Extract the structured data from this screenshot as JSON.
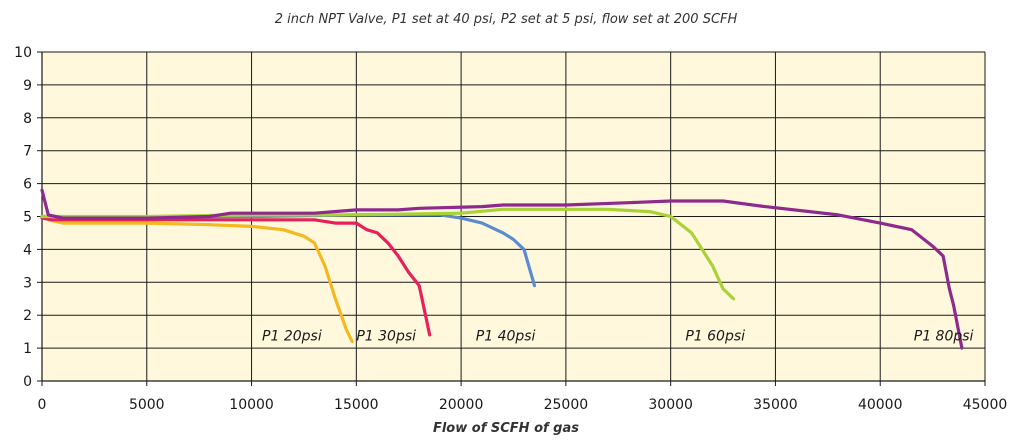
{
  "chart_data": {
    "type": "line",
    "title": "2 inch NPT Valve, P1 set at 40 psi, P2 set at 5 psi, flow set at 200 SCFH",
    "xlabel": "Flow of SCFH of gas",
    "ylabel": "",
    "xlim": [
      0,
      45000
    ],
    "ylim": [
      0,
      10
    ],
    "xticks": [
      "0",
      "5000",
      "10000",
      "15000",
      "20000",
      "25000",
      "30000",
      "35000",
      "40000",
      "45000"
    ],
    "yticks": [
      "0",
      "1",
      "2",
      "3",
      "4",
      "5",
      "6",
      "7",
      "8",
      "9",
      "10"
    ],
    "grid": true,
    "plot_background": "#FFF8DC",
    "series": [
      {
        "name": "P1 20psi",
        "color": "#F5B820",
        "points": [
          [
            0,
            5.0
          ],
          [
            300,
            4.9
          ],
          [
            1000,
            4.8
          ],
          [
            5000,
            4.8
          ],
          [
            8000,
            4.75
          ],
          [
            10000,
            4.7
          ],
          [
            11500,
            4.6
          ],
          [
            12500,
            4.4
          ],
          [
            13000,
            4.2
          ],
          [
            13500,
            3.5
          ],
          [
            14000,
            2.5
          ],
          [
            14500,
            1.6
          ],
          [
            14800,
            1.2
          ]
        ]
      },
      {
        "name": "P1 30psi",
        "color": "#E8205A",
        "points": [
          [
            0,
            4.95
          ],
          [
            500,
            4.9
          ],
          [
            5000,
            4.9
          ],
          [
            10000,
            4.9
          ],
          [
            13000,
            4.9
          ],
          [
            14000,
            4.8
          ],
          [
            15000,
            4.8
          ],
          [
            15500,
            4.6
          ],
          [
            16000,
            4.5
          ],
          [
            16500,
            4.2
          ],
          [
            17000,
            3.8
          ],
          [
            17500,
            3.3
          ],
          [
            18000,
            2.9
          ],
          [
            18500,
            1.4
          ]
        ]
      },
      {
        "name": "P1 40psi",
        "color": "#5B8CD0",
        "points": [
          [
            0,
            5.0
          ],
          [
            300,
            5.0
          ],
          [
            5000,
            4.98
          ],
          [
            10000,
            5.0
          ],
          [
            15000,
            5.05
          ],
          [
            19000,
            5.05
          ],
          [
            20000,
            4.95
          ],
          [
            21000,
            4.8
          ],
          [
            22000,
            4.5
          ],
          [
            22500,
            4.3
          ],
          [
            23000,
            4.0
          ],
          [
            23500,
            2.9
          ]
        ]
      },
      {
        "name": "P1 60psi",
        "color": "#A8D235",
        "points": [
          [
            0,
            5.0
          ],
          [
            5000,
            5.0
          ],
          [
            10000,
            5.05
          ],
          [
            15000,
            5.05
          ],
          [
            20000,
            5.1
          ],
          [
            22000,
            5.22
          ],
          [
            27000,
            5.22
          ],
          [
            29000,
            5.15
          ],
          [
            30000,
            5.0
          ],
          [
            31000,
            4.5
          ],
          [
            32000,
            3.5
          ],
          [
            32500,
            2.8
          ],
          [
            33000,
            2.5
          ]
        ]
      },
      {
        "name": "P1 80psi",
        "color": "#8E2A8E",
        "points": [
          [
            0,
            5.8
          ],
          [
            200,
            5.3
          ],
          [
            300,
            5.05
          ],
          [
            1000,
            4.95
          ],
          [
            5000,
            4.95
          ],
          [
            8000,
            5.0
          ],
          [
            9000,
            5.1
          ],
          [
            13000,
            5.1
          ],
          [
            15000,
            5.2
          ],
          [
            17000,
            5.2
          ],
          [
            18000,
            5.25
          ],
          [
            21000,
            5.3
          ],
          [
            22000,
            5.35
          ],
          [
            25000,
            5.35
          ],
          [
            28000,
            5.42
          ],
          [
            30000,
            5.47
          ],
          [
            32500,
            5.47
          ],
          [
            34500,
            5.3
          ],
          [
            38000,
            5.05
          ],
          [
            40000,
            4.8
          ],
          [
            41500,
            4.6
          ],
          [
            42500,
            4.1
          ],
          [
            43000,
            3.8
          ],
          [
            43300,
            2.8
          ],
          [
            43500,
            2.3
          ],
          [
            43900,
            1.0
          ]
        ]
      }
    ],
    "annotations": [
      {
        "text": "P1 20psi",
        "x": 10500,
        "y": 1.2
      },
      {
        "text": "P1 30psi",
        "x": 15000,
        "y": 1.2
      },
      {
        "text": "P1 40psi",
        "x": 20700,
        "y": 1.2
      },
      {
        "text": "P1 60psi",
        "x": 30700,
        "y": 1.2
      },
      {
        "text": "P1 80psi",
        "x": 41600,
        "y": 1.2
      }
    ]
  }
}
